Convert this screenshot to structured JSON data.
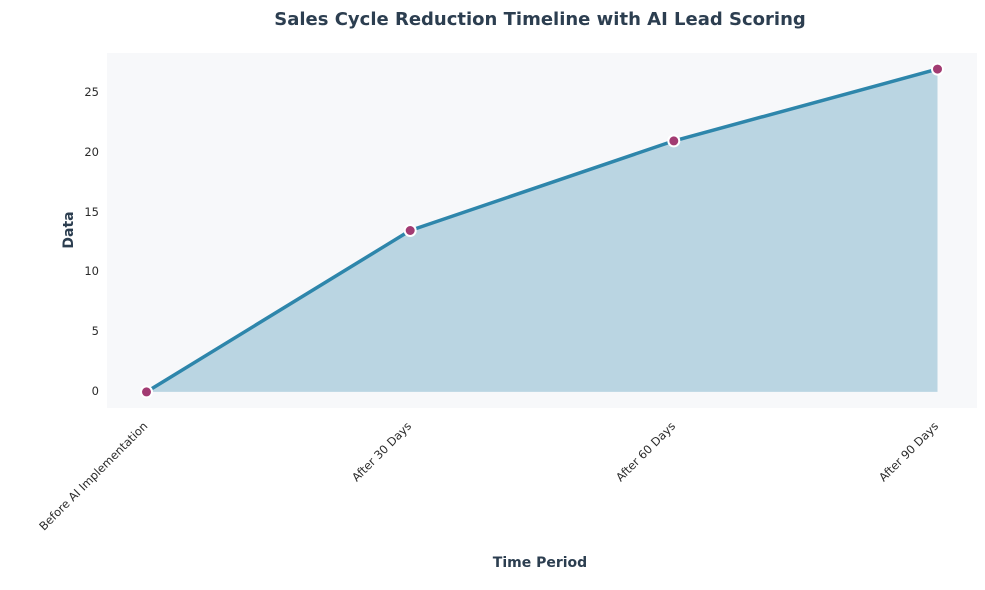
{
  "chart_data": {
    "type": "area",
    "title": "Sales Cycle Reduction Timeline with AI Lead Scoring",
    "xlabel": "Time Period",
    "ylabel": "Data",
    "categories": [
      "Before AI Implementation",
      "After 30 Days",
      "After 60 Days",
      "After 90 Days"
    ],
    "values": [
      0,
      13.5,
      21,
      27
    ],
    "yticks": [
      0,
      5,
      10,
      15,
      20,
      25
    ],
    "ylim": [
      -1.35,
      28.35
    ],
    "x_margin": 0.15,
    "grid": false,
    "legend": false,
    "colors": {
      "line": "#2e86ab",
      "fill": "#2e86ab",
      "fill_opacity": 0.3,
      "marker": "#a23b72",
      "marker_edge": "#ffffff",
      "plot_background": "#f7f8fa",
      "figure_background": "#ffffff",
      "title_text": "#2c3e50",
      "tick_text": "#2b2b2b"
    }
  }
}
